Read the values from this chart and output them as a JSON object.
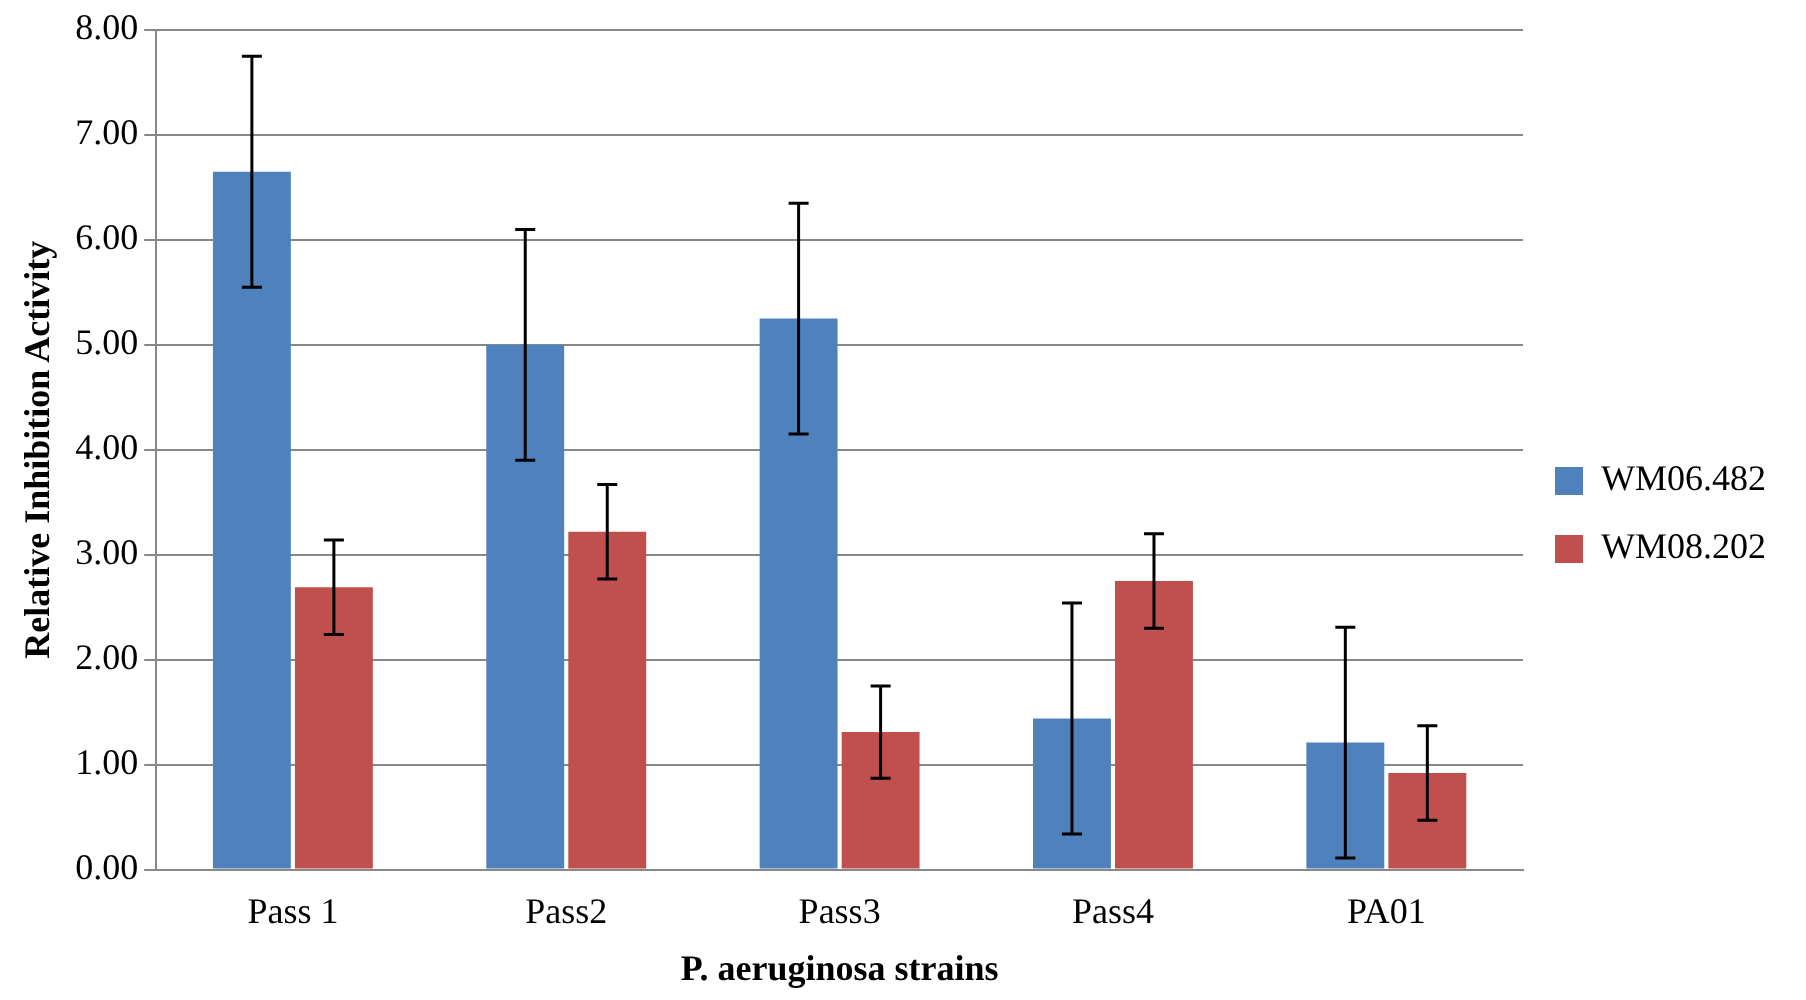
{
  "chart_data": {
    "type": "bar",
    "xlabel": "P. aeruginosa strains",
    "ylabel": "Relative Inhibition Activity",
    "categories": [
      "Pass 1",
      "Pass2",
      "Pass3",
      "Pass4",
      "PA01"
    ],
    "series": [
      {
        "name": "WM06.482",
        "color": "#4f81bd",
        "values": [
          6.65,
          5.0,
          5.25,
          1.44,
          1.21
        ],
        "errors": [
          1.1,
          1.1,
          1.1,
          1.1,
          1.1
        ]
      },
      {
        "name": "WM08.202",
        "color": "#c0504d",
        "values": [
          2.69,
          3.22,
          1.31,
          2.75,
          0.92
        ],
        "errors": [
          0.45,
          0.45,
          0.44,
          0.45,
          0.45
        ]
      }
    ],
    "ylim": [
      0,
      8
    ],
    "yticks": [
      {
        "value": 0,
        "label": "0.00"
      },
      {
        "value": 1,
        "label": "1.00"
      },
      {
        "value": 2,
        "label": "2.00"
      },
      {
        "value": 3,
        "label": "3.00"
      },
      {
        "value": 4,
        "label": "4.00"
      },
      {
        "value": 5,
        "label": "5.00"
      },
      {
        "value": 6,
        "label": "6.00"
      },
      {
        "value": 7,
        "label": "7.00"
      },
      {
        "value": 8,
        "label": "8.00"
      }
    ],
    "grid": "y",
    "legend": "right"
  }
}
